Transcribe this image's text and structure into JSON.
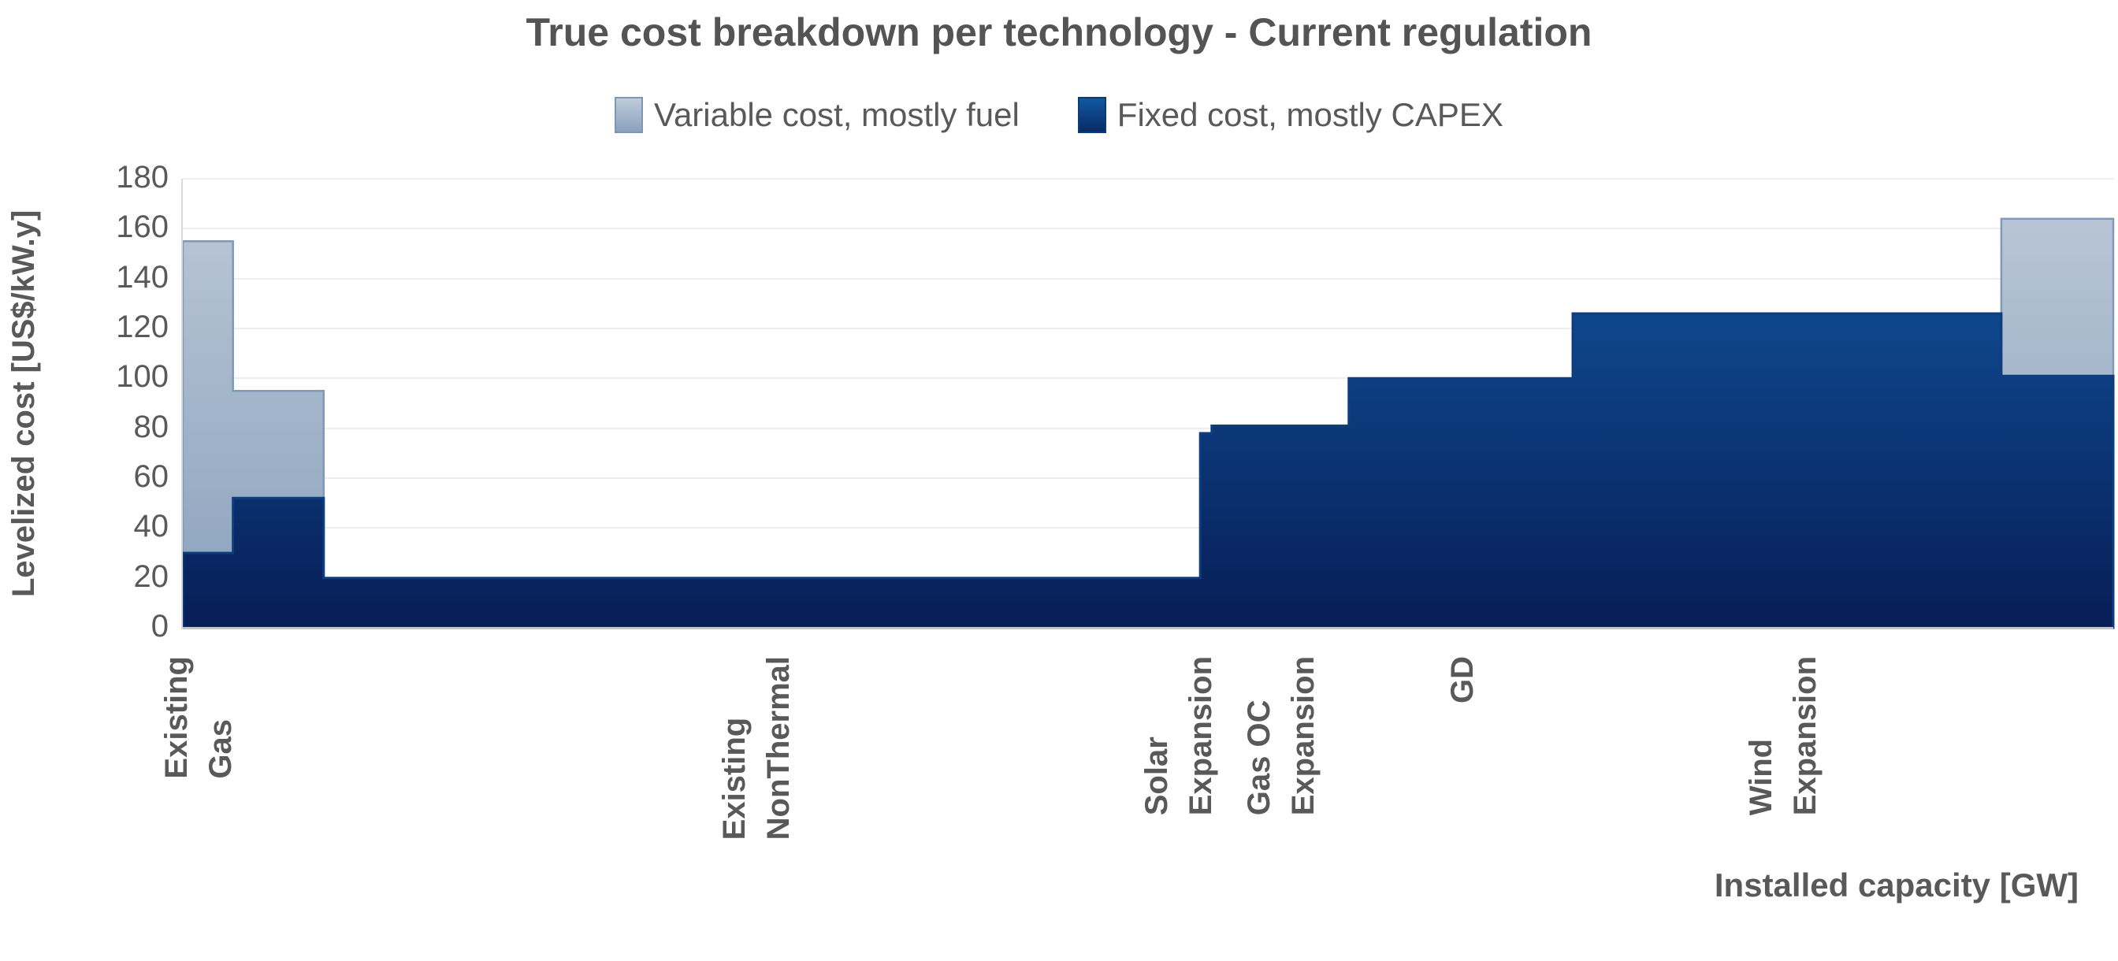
{
  "title": "True cost breakdown per technology - Current regulation",
  "chart_data": {
    "type": "area",
    "subtype": "stacked stepped area (cost supply curve)",
    "title": "True cost breakdown per technology - Current regulation",
    "xlabel": "Installed capacity [GW]",
    "ylabel": "Levelized cost [US$/kW.y]",
    "ylim": [
      0,
      180
    ],
    "yticks": [
      180,
      160,
      140,
      120,
      100,
      80,
      60,
      40,
      20,
      0
    ],
    "grid": true,
    "x_axis_numeric_ticks": "none shown",
    "legend_position": "top center",
    "legend": [
      {
        "label": "Variable cost, mostly fuel",
        "color_top": "#c0ccda",
        "color_bottom": "#8aa2bd",
        "border": "#7e97b5"
      },
      {
        "label": "Fixed cost, mostly CAPEX",
        "color_top": "#1159a4",
        "color_bottom": "#0a2a66",
        "border": "#0d3a78"
      }
    ],
    "stacking_note": "total level = fixed + variable; values in US$/kW.y read from gridlines",
    "segments": [
      {
        "label": "Existing Gas",
        "x_start_pct": 0.0,
        "x_end_pct": 2.6,
        "fixed": 30,
        "variable": 125,
        "total": 155
      },
      {
        "label": "Existing Gas",
        "x_start_pct": 2.6,
        "x_end_pct": 7.3,
        "fixed": 52,
        "variable": 43,
        "total": 95
      },
      {
        "label": "Existing NonThermal",
        "x_start_pct": 7.3,
        "x_end_pct": 52.7,
        "fixed": 20,
        "variable": 0,
        "total": 20
      },
      {
        "label": "Solar Expansion",
        "x_start_pct": 52.7,
        "x_end_pct": 53.3,
        "fixed": 78,
        "variable": 0,
        "total": 78
      },
      {
        "label": "Gas OC Expansion",
        "x_start_pct": 53.3,
        "x_end_pct": 60.4,
        "fixed": 81,
        "variable": 0,
        "total": 81
      },
      {
        "label": "GD",
        "x_start_pct": 60.4,
        "x_end_pct": 72.0,
        "fixed": 100,
        "variable": 0,
        "total": 100
      },
      {
        "label": "Wind Expansion",
        "x_start_pct": 72.0,
        "x_end_pct": 94.2,
        "fixed": 126,
        "variable": 0,
        "total": 126
      },
      {
        "label": "",
        "x_start_pct": 94.2,
        "x_end_pct": 100.0,
        "fixed": 101,
        "variable": 63,
        "total": 164
      }
    ],
    "x_axis_labels": [
      {
        "lines": [
          "Existing",
          "Gas"
        ],
        "x_pct": 0.8
      },
      {
        "lines": [
          "Existing",
          "NonThermal"
        ],
        "x_pct": 29.7
      },
      {
        "lines": [
          "Solar",
          "Expansion"
        ],
        "x_pct": 51.6
      },
      {
        "lines": [
          "Gas OC",
          "Expansion"
        ],
        "x_pct": 56.9
      },
      {
        "lines": [
          "GD"
        ],
        "x_pct": 66.3
      },
      {
        "lines": [
          "Wind",
          "Expansion"
        ],
        "x_pct": 82.9
      }
    ],
    "colors": {
      "fixed_area_top": "#1159a4",
      "fixed_area_bottom": "#071d56",
      "fixed_area_stroke": "#0e3d7d",
      "variable_area_top": "#bcc8d7",
      "variable_area_bottom": "#8aa2bd",
      "variable_area_stroke": "#8099ba",
      "gridline": "#eeeeee",
      "axis_line": "#c6c6c6",
      "text": "#595959"
    }
  }
}
